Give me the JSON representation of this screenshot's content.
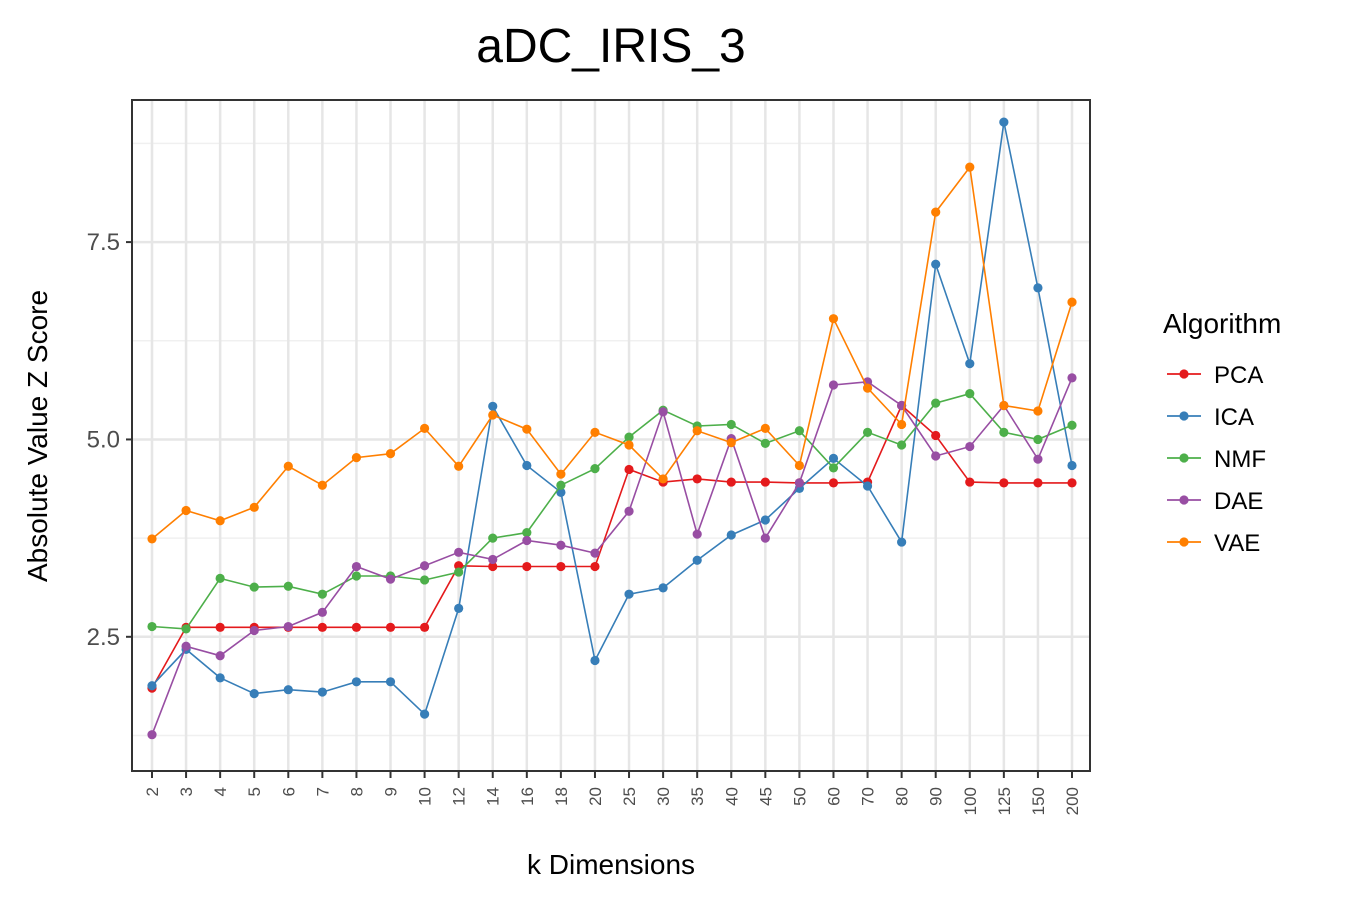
{
  "chart_data": {
    "type": "line",
    "title": "aDC_IRIS_3",
    "xlabel": "k Dimensions",
    "ylabel": "Absolute Value Z Score",
    "categories": [
      "2",
      "3",
      "4",
      "5",
      "6",
      "7",
      "8",
      "9",
      "10",
      "12",
      "14",
      "16",
      "18",
      "20",
      "25",
      "30",
      "35",
      "40",
      "45",
      "50",
      "60",
      "70",
      "80",
      "90",
      "100",
      "125",
      "150",
      "200"
    ],
    "ylim": [
      0.8,
      9.3
    ],
    "yticks": [
      2.5,
      5.0,
      7.5
    ],
    "ytick_labels": [
      "2.5",
      "5.0",
      "7.5"
    ],
    "grid": true,
    "legend": {
      "title": "Algorithm",
      "placement": "right"
    },
    "series": [
      {
        "name": "PCA",
        "color": "#e41a1c",
        "values": [
          1.85,
          2.62,
          2.62,
          2.62,
          2.62,
          2.62,
          2.62,
          2.62,
          2.62,
          3.4,
          3.39,
          3.39,
          3.39,
          3.39,
          4.62,
          4.46,
          4.5,
          4.46,
          4.46,
          4.45,
          4.45,
          4.46,
          5.43,
          5.05,
          4.46,
          4.45,
          4.45,
          4.45
        ]
      },
      {
        "name": "ICA",
        "color": "#377eb8",
        "values": [
          1.88,
          2.34,
          1.98,
          1.78,
          1.83,
          1.8,
          1.93,
          1.93,
          1.52,
          2.86,
          5.42,
          4.67,
          4.33,
          2.2,
          3.04,
          3.12,
          3.47,
          3.79,
          3.98,
          4.38,
          4.76,
          4.41,
          3.7,
          7.22,
          5.96,
          9.02,
          6.92,
          4.67
        ]
      },
      {
        "name": "NMF",
        "color": "#4daf4a",
        "values": [
          2.63,
          2.6,
          3.24,
          3.13,
          3.14,
          3.04,
          3.27,
          3.27,
          3.22,
          3.32,
          3.75,
          3.82,
          4.42,
          4.63,
          5.03,
          5.37,
          5.17,
          5.19,
          4.95,
          5.11,
          4.64,
          5.09,
          4.93,
          5.46,
          5.58,
          5.09,
          5.0,
          5.18
        ]
      },
      {
        "name": "DAE",
        "color": "#984ea3",
        "values": [
          1.26,
          2.38,
          2.26,
          2.58,
          2.63,
          2.81,
          3.39,
          3.23,
          3.4,
          3.57,
          3.48,
          3.72,
          3.66,
          3.56,
          4.09,
          5.35,
          3.8,
          5.01,
          3.75,
          4.45,
          5.69,
          5.73,
          5.43,
          4.79,
          4.91,
          5.43,
          4.75,
          5.78
        ]
      },
      {
        "name": "VAE",
        "color": "#ff7f00",
        "values": [
          3.74,
          4.1,
          3.97,
          4.14,
          4.66,
          4.42,
          4.77,
          4.82,
          5.14,
          4.66,
          5.31,
          5.13,
          4.56,
          5.09,
          4.93,
          4.5,
          5.11,
          4.96,
          5.14,
          4.67,
          6.53,
          5.65,
          5.19,
          7.88,
          8.45,
          5.43,
          5.36,
          6.74
        ]
      }
    ]
  }
}
